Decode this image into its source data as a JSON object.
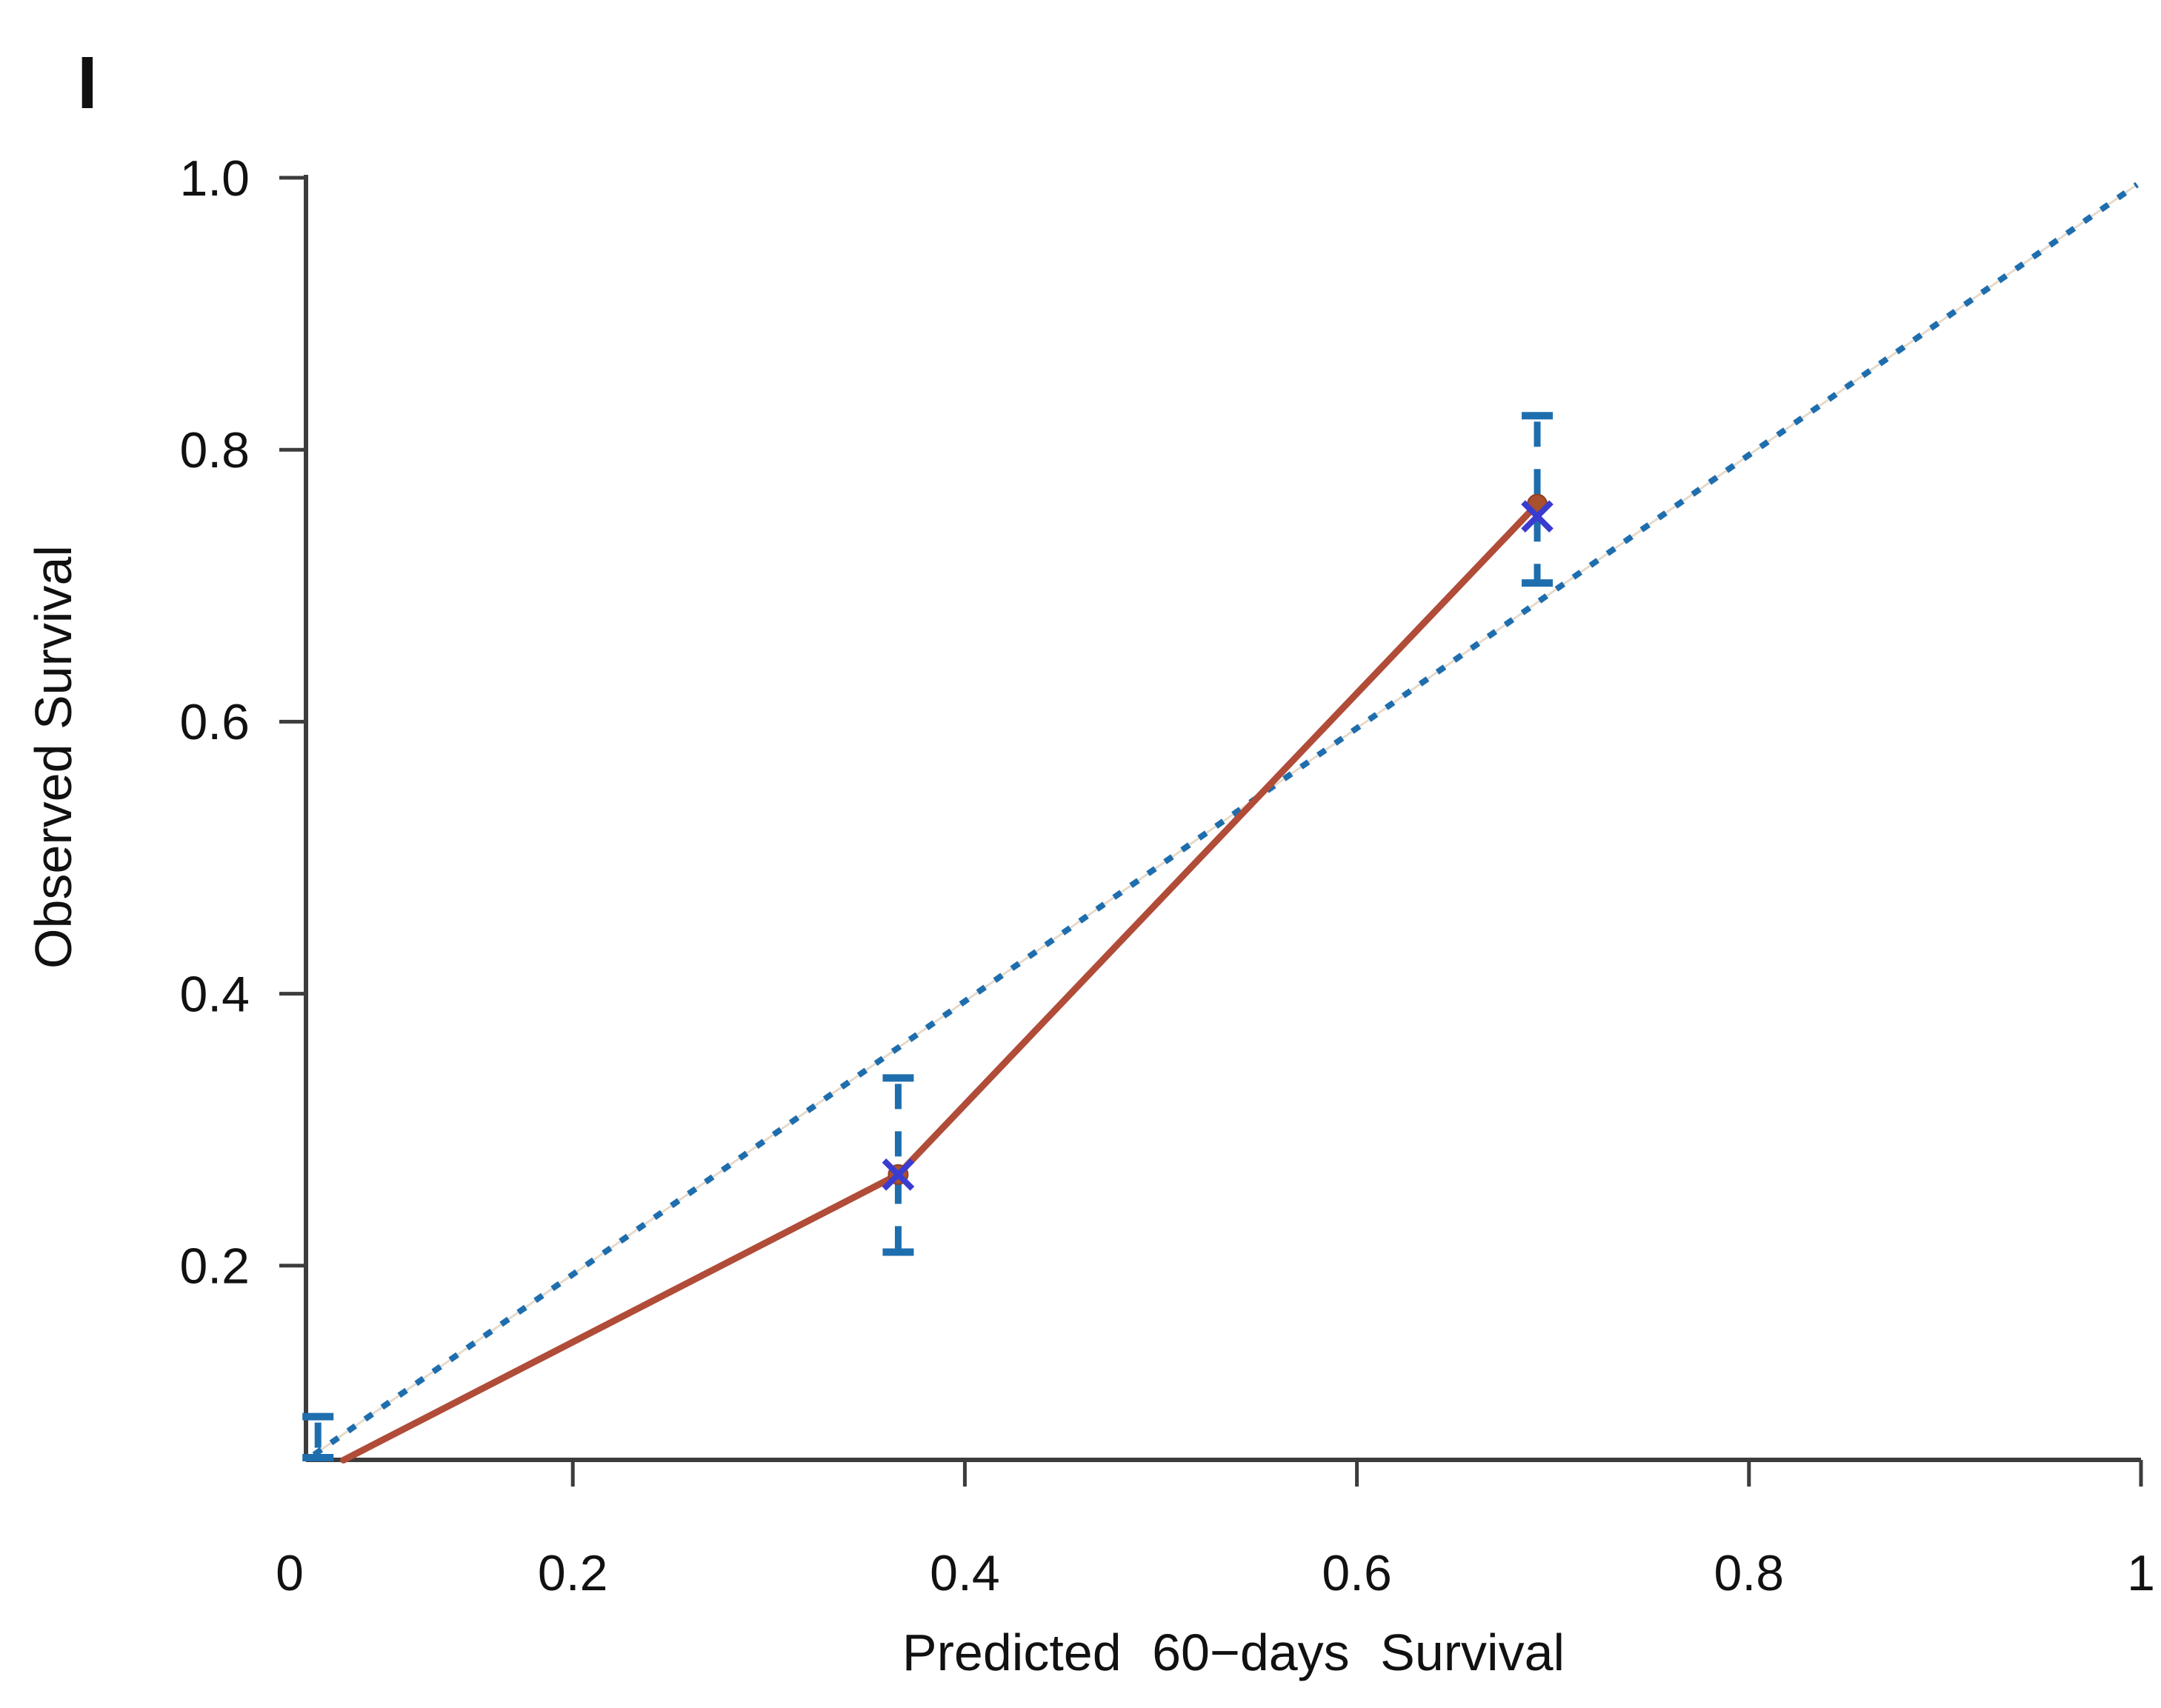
{
  "figure": {
    "panel_label": "I"
  },
  "axes": {
    "x": {
      "title": "Predicted 60−days Survival",
      "tick_labels": [
        "0",
        "0.2",
        "0.4",
        "0.6",
        "0.8",
        "1"
      ],
      "tick_values": [
        0,
        0.2,
        0.4,
        0.6,
        0.8,
        1
      ]
    },
    "y": {
      "title": "Observed Survival",
      "tick_labels": [
        "1.0",
        "0.8",
        "0.6",
        "0.4",
        "0.2"
      ],
      "tick_values": [
        1.0,
        0.8,
        0.6,
        0.4,
        0.2
      ]
    }
  },
  "chart_data": {
    "type": "line",
    "subtype": "calibration-plot",
    "title": "",
    "xlabel": "Predicted 60−days Survival",
    "ylabel": "Observed Survival",
    "xlim": [
      0,
      1
    ],
    "ylim": [
      0,
      1
    ],
    "x_ticks": [
      0,
      0.2,
      0.4,
      0.6,
      0.8,
      1
    ],
    "y_ticks": [
      0.2,
      0.4,
      0.6,
      0.8,
      1.0
    ],
    "grid": false,
    "legend": false,
    "series": [
      {
        "name": "ideal-line",
        "type": "line",
        "style": "dotted",
        "color": "#1e6eae",
        "points": [
          [
            0.068,
            0.061
          ],
          [
            0.998,
            0.995
          ]
        ]
      },
      {
        "name": "calibration-line",
        "type": "line",
        "style": "solid",
        "color": "#b04c38",
        "points": [
          [
            0.083,
            0.057
          ],
          [
            0.366,
            0.267
          ],
          [
            0.692,
            0.76
          ]
        ]
      },
      {
        "name": "observed-points",
        "type": "scatter",
        "marker": "dot",
        "color": "#a9502f",
        "points": [
          [
            0.366,
            0.267
          ],
          [
            0.692,
            0.76
          ]
        ]
      },
      {
        "name": "x-markers",
        "type": "scatter",
        "marker": "x",
        "color": "#3a3ccf",
        "points": [
          [
            0.366,
            0.267
          ],
          [
            0.692,
            0.751
          ]
        ]
      }
    ],
    "error_bars": {
      "color": "#1e6eae",
      "style": "dashed",
      "bars": [
        {
          "x": 0.366,
          "low": 0.21,
          "high": 0.338,
          "clipped_at_axis": false
        },
        {
          "x": 0.692,
          "low": 0.702,
          "high": 0.825,
          "clipped_at_axis": false
        },
        {
          "x": 0.07,
          "low": 0.057,
          "high": 0.089,
          "clipped_at_axis": true
        }
      ]
    }
  },
  "colors": {
    "background": "#ffffff",
    "axis": "#3c3c3c",
    "text": "#111111",
    "ideal_line": "#1e6eae",
    "ideal_underlay": "#e6dacb",
    "calibration_line": "#b04c38",
    "point_fill": "#a9502f",
    "point_edge": "#8d3f26",
    "x_marker": "#3a3ccf",
    "error_bar": "#1e6eae"
  }
}
